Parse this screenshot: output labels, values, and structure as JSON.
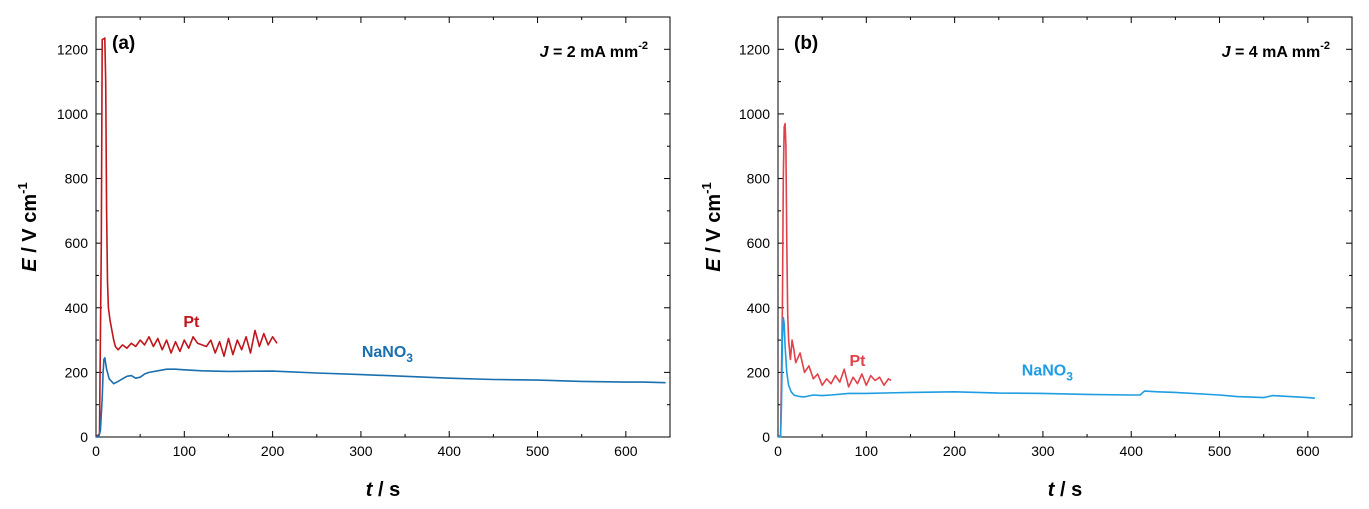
{
  "chart_data": [
    {
      "type": "line",
      "panel_label": "(a)",
      "condition": {
        "prefix": "J",
        "text": " = 2 mA mm",
        "sup": "-2"
      },
      "xlabel": {
        "italic": "t",
        "rest": " / s"
      },
      "ylabel": {
        "italic": "E",
        "rest": " / V cm",
        "sup": "-1"
      },
      "xlim": [
        0,
        650
      ],
      "ylim": [
        0,
        1300
      ],
      "xticks": [
        0,
        100,
        200,
        300,
        400,
        500,
        600
      ],
      "yticks": [
        0,
        200,
        400,
        600,
        800,
        1000,
        1200
      ],
      "grid": false,
      "series": [
        {
          "name": "Pt",
          "color": "#c0161b",
          "label_anchor": [
            108,
            340
          ],
          "x": [
            0,
            4,
            6,
            7,
            8,
            9,
            10,
            11,
            12,
            13,
            14,
            16,
            18,
            20,
            22,
            25,
            30,
            35,
            40,
            45,
            50,
            55,
            60,
            65,
            70,
            75,
            80,
            85,
            90,
            95,
            100,
            105,
            110,
            115,
            120,
            125,
            130,
            135,
            140,
            145,
            150,
            155,
            160,
            165,
            170,
            175,
            180,
            185,
            190,
            195,
            200,
            205
          ],
          "y": [
            0,
            10,
            600,
            1230,
            1232,
            1232,
            1235,
            1100,
            700,
            480,
            400,
            360,
            330,
            300,
            280,
            270,
            285,
            275,
            290,
            280,
            300,
            285,
            310,
            280,
            305,
            270,
            300,
            260,
            295,
            265,
            300,
            275,
            310,
            290,
            285,
            280,
            300,
            260,
            295,
            250,
            305,
            255,
            300,
            270,
            310,
            260,
            330,
            280,
            320,
            285,
            310,
            290
          ]
        },
        {
          "name": "NaNO3",
          "display_name": {
            "text": "NaNO",
            "sub": "3"
          },
          "color": "#1a6faf",
          "label_anchor": [
            330,
            248
          ],
          "x": [
            0,
            3,
            5,
            7,
            8,
            9,
            10,
            12,
            15,
            20,
            25,
            30,
            35,
            40,
            45,
            50,
            55,
            60,
            70,
            80,
            90,
            100,
            120,
            150,
            200,
            250,
            300,
            330,
            350,
            400,
            450,
            500,
            550,
            600,
            620,
            645
          ],
          "y": [
            0,
            0,
            20,
            120,
            200,
            240,
            245,
            210,
            180,
            165,
            172,
            180,
            188,
            190,
            182,
            185,
            195,
            200,
            205,
            210,
            210,
            208,
            205,
            203,
            204,
            198,
            193,
            190,
            188,
            182,
            178,
            176,
            172,
            170,
            170,
            168
          ]
        }
      ]
    },
    {
      "type": "line",
      "panel_label": "(b)",
      "condition": {
        "prefix": "J",
        "text": " = 4 mA mm",
        "sup": "-2"
      },
      "xlabel": {
        "italic": "t",
        "rest": " / s"
      },
      "ylabel": {
        "italic": "E",
        "rest": " / V cm",
        "sup": "-1"
      },
      "xlim": [
        0,
        650
      ],
      "ylim": [
        0,
        1300
      ],
      "xticks": [
        0,
        100,
        200,
        300,
        400,
        500,
        600
      ],
      "yticks": [
        0,
        200,
        400,
        600,
        800,
        1000,
        1200
      ],
      "grid": false,
      "series": [
        {
          "name": "Pt",
          "color": "#e0414a",
          "label_anchor": [
            90,
            220
          ],
          "x": [
            0,
            3,
            5,
            6,
            7,
            8,
            9,
            10,
            11,
            12,
            14,
            16,
            18,
            20,
            25,
            30,
            35,
            40,
            45,
            50,
            55,
            60,
            65,
            70,
            75,
            80,
            85,
            90,
            95,
            100,
            105,
            110,
            115,
            120,
            125,
            128
          ],
          "y": [
            0,
            5,
            400,
            800,
            960,
            970,
            900,
            600,
            380,
            300,
            240,
            300,
            270,
            230,
            260,
            200,
            220,
            180,
            195,
            160,
            180,
            165,
            190,
            170,
            210,
            155,
            185,
            165,
            195,
            160,
            190,
            175,
            185,
            160,
            180,
            175
          ]
        },
        {
          "name": "NaNO3",
          "display_name": {
            "text": "NaNO",
            "sub": "3"
          },
          "color": "#1e9de2",
          "label_anchor": [
            305,
            190
          ],
          "x": [
            0,
            3,
            4,
            5,
            6,
            7,
            8,
            10,
            12,
            15,
            18,
            20,
            25,
            30,
            40,
            50,
            60,
            80,
            100,
            150,
            200,
            250,
            300,
            350,
            400,
            410,
            415,
            430,
            450,
            500,
            520,
            550,
            560,
            580,
            600,
            608
          ],
          "y": [
            0,
            0,
            100,
            300,
            370,
            350,
            280,
            200,
            160,
            140,
            130,
            128,
            125,
            124,
            130,
            128,
            130,
            135,
            135,
            138,
            140,
            136,
            135,
            132,
            130,
            130,
            142,
            140,
            138,
            130,
            125,
            122,
            128,
            125,
            122,
            120
          ]
        }
      ]
    }
  ]
}
